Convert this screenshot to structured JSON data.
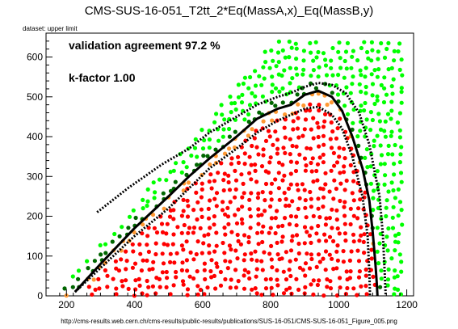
{
  "chart_data": {
    "type": "scatter",
    "title": "CMS-SUS-16-051_T2tt_2*Eq(MassA,x)_Eq(MassB,y)",
    "subtitle": "dataset: upper limit",
    "footer_url": "http://cms-results.web.cern.ch/cms-results/public-results/publications/SUS-16-051/CMS-SUS-16-051_Figure_005.png",
    "annotations": [
      "validation agreement 97.2 %",
      "k-factor 1.00"
    ],
    "xlim": [
      140,
      1220
    ],
    "ylim": [
      0,
      660
    ],
    "x_ticks": [
      200,
      400,
      600,
      800,
      1000,
      1200
    ],
    "y_ticks": [
      0,
      100,
      200,
      300,
      400,
      500,
      600
    ],
    "colors": {
      "excluded": "#ff0000",
      "allowed": "#00ff00",
      "near_excluded": "#ff9933",
      "near_allowed": "#006600",
      "lines": "#000000"
    },
    "point_categories": [
      "excluded",
      "allowed",
      "near_excluded",
      "near_allowed"
    ],
    "series": [
      {
        "style": "solid",
        "x": [
          225,
          300,
          400,
          500,
          560,
          620,
          700,
          760,
          820,
          860,
          900,
          940,
          980,
          1010,
          1040,
          1070,
          1090,
          1100,
          1108,
          1112,
          1114
        ],
        "y": [
          10,
          80,
          170,
          250,
          300,
          345,
          400,
          445,
          470,
          480,
          505,
          515,
          500,
          465,
          400,
          320,
          240,
          160,
          80,
          30,
          0
        ]
      },
      {
        "style": "dotted",
        "x": [
          290,
          380,
          480,
          560,
          620,
          700,
          760,
          820,
          860,
          900,
          940,
          980,
          1020,
          1060,
          1090,
          1120,
          1130,
          1135,
          1138
        ],
        "y": [
          210,
          270,
          330,
          370,
          410,
          450,
          480,
          500,
          510,
          525,
          535,
          530,
          510,
          460,
          380,
          250,
          150,
          60,
          0
        ]
      },
      {
        "style": "dotted",
        "x": [
          225,
          300,
          400,
          500,
          560,
          620,
          700,
          760,
          820,
          860,
          900,
          940,
          980,
          1010,
          1040,
          1070,
          1085,
          1090,
          1092
        ],
        "y": [
          10,
          70,
          150,
          220,
          270,
          320,
          370,
          410,
          440,
          455,
          470,
          475,
          455,
          420,
          350,
          250,
          150,
          60,
          0
        ]
      }
    ]
  }
}
